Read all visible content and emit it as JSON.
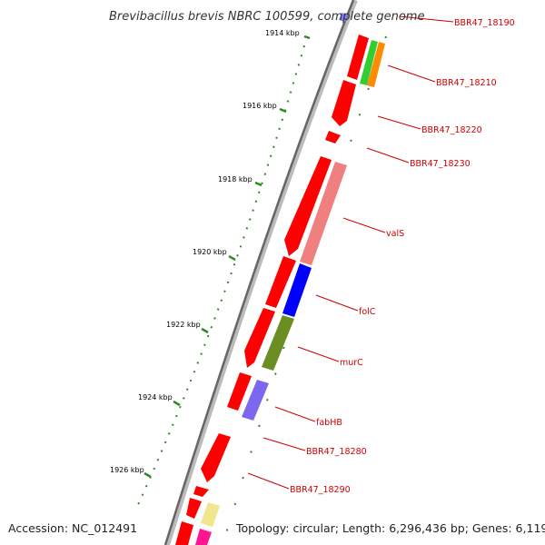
{
  "title": "Brevibacillus brevis NBRC 100599, complete genome",
  "footer": {
    "accession": "Accession: NC_012491",
    "summary": "Topology: circular; Length: 6,296,436 bp; Genes: 6,119"
  },
  "scale": {
    "ticks": [
      "1914 kbp",
      "1916 kbp",
      "1918 kbp",
      "1920 kbp",
      "1922 kbp",
      "1924 kbp",
      "1926 kbp"
    ]
  },
  "colors": {
    "cds": "#ff0000",
    "backbone": "#808080",
    "tick": "#2e8b22",
    "label": "#cc0000"
  },
  "genes": [
    {
      "name": "BBR47_18190",
      "color": "#8080ff"
    },
    {
      "name": "BBR47_18210",
      "color": "#ff8c00"
    },
    {
      "name": "",
      "color": "#32cd32"
    },
    {
      "name": "BBR47_18220",
      "color": "#ff0000"
    },
    {
      "name": "BBR47_18230",
      "color": "#ff0000"
    },
    {
      "name": "valS",
      "color": "#f08080"
    },
    {
      "name": "folC",
      "color": "#0000ff"
    },
    {
      "name": "murC",
      "color": "#6b8e23"
    },
    {
      "name": "fabHB",
      "color": "#7b68ee"
    },
    {
      "name": "BBR47_18280",
      "color": "#ff0000"
    },
    {
      "name": "BBR47_18290",
      "color": "#ff0000"
    },
    {
      "name": "",
      "color": "#f0e68c"
    },
    {
      "name": "",
      "color": "#ff1493"
    }
  ]
}
